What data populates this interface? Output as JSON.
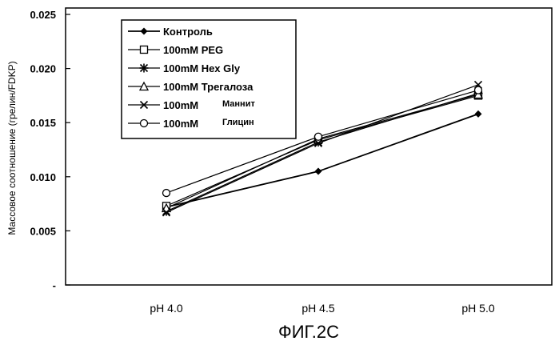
{
  "chart_data": {
    "type": "line",
    "title": "",
    "xlabel": "",
    "ylabel": "Массовое соотношение (грелин/FDKP)",
    "categories": [
      "pH 4.0",
      "pH 4.5",
      "pH 5.0"
    ],
    "ylim": [
      0,
      0.025
    ],
    "yticks": [
      0.025,
      0.02,
      0.015,
      0.01,
      0.005
    ],
    "ytick_labels": [
      "0.025",
      "0.020",
      "0.015",
      "0.010",
      "0.005",
      "-"
    ],
    "grid": false,
    "legend_position": "top-left",
    "caption": "ФИГ.2С",
    "series": [
      {
        "name": "Контроль",
        "values": [
          0.0072,
          0.0105,
          0.0158
        ],
        "marker": "diamond"
      },
      {
        "name": "100mM PEG",
        "values": [
          0.0073,
          0.0134,
          0.0175
        ],
        "marker": "square"
      },
      {
        "name": "100mM Hex Gly",
        "values": [
          0.0068,
          0.0132,
          0.0177
        ],
        "marker": "asterisk"
      },
      {
        "name": "100mM Трегалоза",
        "values": [
          0.0071,
          0.0135,
          0.0176
        ],
        "marker": "triangle"
      },
      {
        "name": "100mM Маннит",
        "values": [
          0.0067,
          0.0131,
          0.0185
        ],
        "marker": "x"
      },
      {
        "name": "100mM Глицин",
        "values": [
          0.0085,
          0.0137,
          0.018
        ],
        "marker": "circle"
      }
    ],
    "legend_labels": [
      {
        "prefix": "Контроль",
        "suffix": ""
      },
      {
        "prefix": "100mM PEG",
        "suffix": ""
      },
      {
        "prefix": "100mM Hex Gly",
        "suffix": ""
      },
      {
        "prefix": "100mM Трегалоза",
        "suffix": ""
      },
      {
        "prefix": "100mM",
        "suffix": "Маннит"
      },
      {
        "prefix": "100mM",
        "suffix": "Глицин"
      }
    ]
  }
}
